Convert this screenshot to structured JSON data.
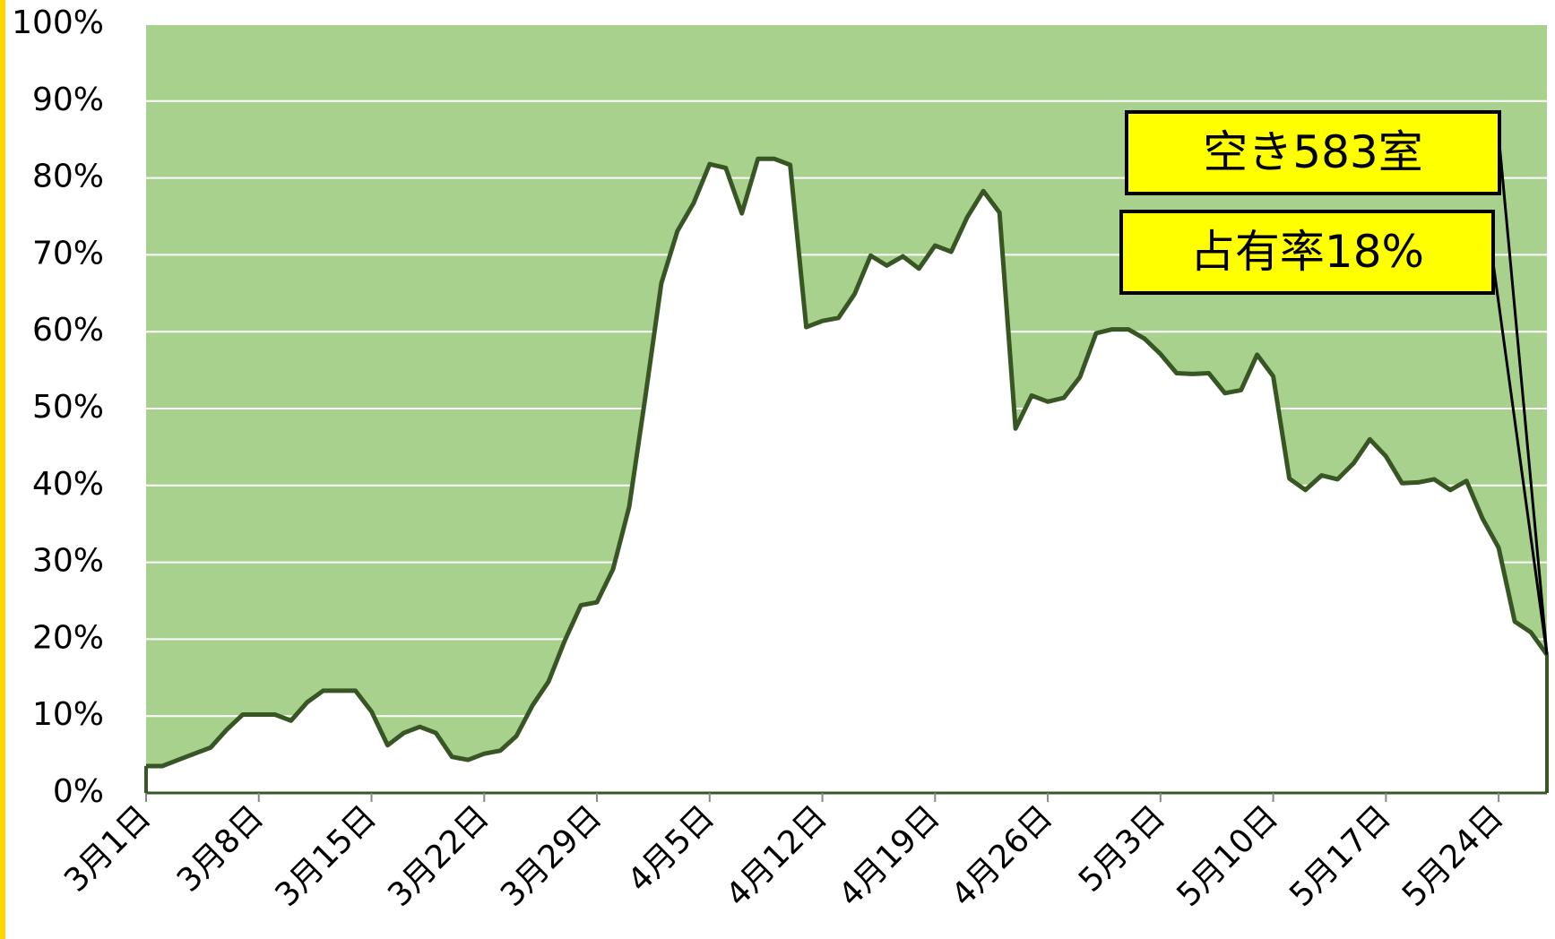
{
  "chart_data": {
    "type": "area",
    "categories": [
      "3月1日",
      null,
      null,
      null,
      null,
      null,
      null,
      "3月8日",
      null,
      null,
      null,
      null,
      null,
      null,
      "3月15日",
      null,
      null,
      null,
      null,
      null,
      null,
      "3月22日",
      null,
      null,
      null,
      null,
      null,
      null,
      "3月29日",
      null,
      null,
      null,
      null,
      null,
      null,
      "4月5日",
      null,
      null,
      null,
      null,
      null,
      null,
      "4月12日",
      null,
      null,
      null,
      null,
      null,
      null,
      "4月19日",
      null,
      null,
      null,
      null,
      null,
      null,
      "4月26日",
      null,
      null,
      null,
      null,
      null,
      null,
      "5月3日",
      null,
      null,
      null,
      null,
      null,
      null,
      "5月10日",
      null,
      null,
      null,
      null,
      null,
      null,
      "5月17日",
      null,
      null,
      null,
      null,
      null,
      null,
      "5月24日",
      null,
      null,
      null
    ],
    "values": [
      3.5,
      3.5,
      4.3,
      5.1,
      5.9,
      8.2,
      10.2,
      10.2,
      10.2,
      9.4,
      11.8,
      13.3,
      13.3,
      13.3,
      10.6,
      6.2,
      7.8,
      8.6,
      7.8,
      4.7,
      4.3,
      5.1,
      5.5,
      7.4,
      11.4,
      14.5,
      19.8,
      24.4,
      24.8,
      29.1,
      37.2,
      51.4,
      66.3,
      73.1,
      76.7,
      81.8,
      81.3,
      75.4,
      82.5,
      82.5,
      81.7,
      60.6,
      61.4,
      61.8,
      64.9,
      69.9,
      68.6,
      69.8,
      68.2,
      71.2,
      70.4,
      74.9,
      78.3,
      75.5,
      47.4,
      51.7,
      50.9,
      51.4,
      54.1,
      59.8,
      60.3,
      60.3,
      59.1,
      57.1,
      54.6,
      54.5,
      54.6,
      52.0,
      52.4,
      57.0,
      54.2,
      40.9,
      39.4,
      41.3,
      40.8,
      42.9,
      46.0,
      43.8,
      40.3,
      40.4,
      40.8,
      39.4,
      40.6,
      35.7,
      31.9,
      22.3,
      20.9,
      18.0
    ],
    "color": "#375623",
    "area_color": "#ffffff",
    "background_color": "#a9d18e",
    "ylim": [
      0,
      100
    ],
    "yticks": [
      {
        "value": 0,
        "label": "0%"
      },
      {
        "value": 10,
        "label": "10%"
      },
      {
        "value": 20,
        "label": "20%"
      },
      {
        "value": 30,
        "label": "30%"
      },
      {
        "value": 40,
        "label": "40%"
      },
      {
        "value": 50,
        "label": "50%"
      },
      {
        "value": 60,
        "label": "60%"
      },
      {
        "value": 70,
        "label": "70%"
      },
      {
        "value": 80,
        "label": "80%"
      },
      {
        "value": 90,
        "label": "90%"
      },
      {
        "value": 100,
        "label": "100%"
      }
    ],
    "grid": true,
    "annotations": [
      "空き583室",
      "占有率18%"
    ]
  }
}
